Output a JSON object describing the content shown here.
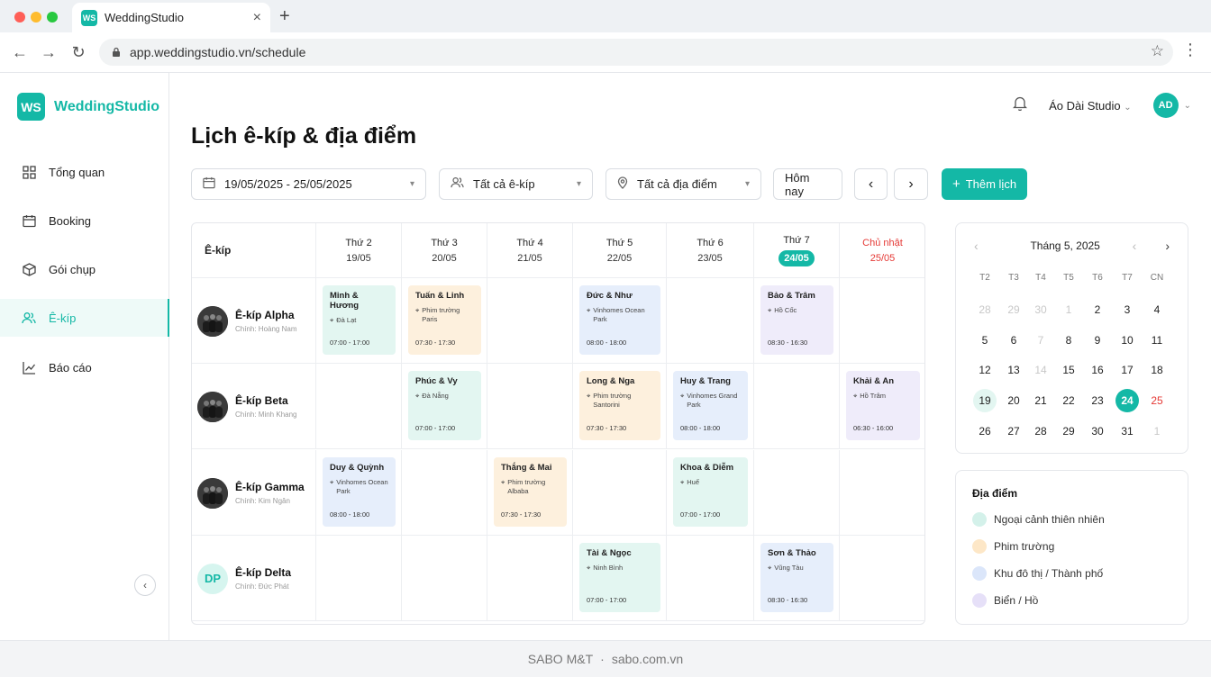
{
  "browser": {
    "tab_title": "WeddingStudio",
    "url": "app.weddingstudio.vn/schedule"
  },
  "app": {
    "logo_mark": "WS",
    "logo_text": "WeddingStudio",
    "studio_name": "Áo Dài Studio",
    "avatar": "AD",
    "page_title": "Lịch ê-kíp & địa điểm"
  },
  "nav": [
    {
      "label": "Tổng quan",
      "icon": "grid-icon"
    },
    {
      "label": "Booking",
      "icon": "calendar-icon"
    },
    {
      "label": "Gói chụp",
      "icon": "box-icon"
    },
    {
      "label": "Ê-kíp",
      "icon": "users-icon",
      "active": true
    },
    {
      "label": "Báo cáo",
      "icon": "chart-icon"
    }
  ],
  "filters": {
    "date_range": "19/05/2025 - 25/05/2025",
    "team": "Tất cả ê-kíp",
    "location": "Tất cả địa điểm",
    "today": "Hôm nay",
    "add": "Thêm lịch"
  },
  "grid": {
    "team_header": "Ê-kíp",
    "days": [
      {
        "name": "Thứ 2",
        "date": "19/05"
      },
      {
        "name": "Thứ 3",
        "date": "20/05"
      },
      {
        "name": "Thứ 4",
        "date": "21/05"
      },
      {
        "name": "Thứ 5",
        "date": "22/05"
      },
      {
        "name": "Thứ 6",
        "date": "23/05"
      },
      {
        "name": "Thứ 7",
        "date": "24/05",
        "today": true
      },
      {
        "name": "Chủ nhật",
        "date": "25/05",
        "sunday": true
      }
    ],
    "teams": [
      {
        "name": "Ê-kíp Alpha",
        "lead": "Chính: Hoàng Nam"
      },
      {
        "name": "Ê-kíp Beta",
        "lead": "Chính: Minh Khang"
      },
      {
        "name": "Ê-kíp Gamma",
        "lead": "Chính: Kim Ngân"
      },
      {
        "name": "Ê-kíp Delta",
        "lead": "Chính: Đức Phát",
        "initials": "DP"
      }
    ],
    "events": [
      {
        "row": 0,
        "day": 0,
        "title": "Minh & Hương",
        "location": "Đà Lạt",
        "time": "07:00 - 17:00",
        "color": "green"
      },
      {
        "row": 0,
        "day": 1,
        "title": "Tuấn & Linh",
        "location": "Phim trường Paris",
        "time": "07:30 - 17:30",
        "color": "orange"
      },
      {
        "row": 0,
        "day": 3,
        "title": "Đức & Như",
        "location": "Vinhomes Ocean Park",
        "time": "08:00 - 18:00",
        "color": "blue"
      },
      {
        "row": 0,
        "day": 5,
        "title": "Bảo & Trâm",
        "location": "Hồ Cốc",
        "time": "08:30 - 16:30",
        "color": "purple"
      },
      {
        "row": 1,
        "day": 1,
        "title": "Phúc & Vy",
        "location": "Đà Nẵng",
        "time": "07:00 - 17:00",
        "color": "green"
      },
      {
        "row": 1,
        "day": 3,
        "title": "Long & Nga",
        "location": "Phim trường Santorini",
        "time": "07:30 - 17:30",
        "color": "orange"
      },
      {
        "row": 1,
        "day": 4,
        "title": "Huy & Trang",
        "location": "Vinhomes Grand Park",
        "time": "08:00 - 18:00",
        "color": "blue"
      },
      {
        "row": 1,
        "day": 6,
        "title": "Khải & An",
        "location": "Hồ Trâm",
        "time": "06:30 - 16:00",
        "color": "purple"
      },
      {
        "row": 2,
        "day": 0,
        "title": "Duy & Quỳnh",
        "location": "Vinhomes Ocean Park",
        "time": "08:00 - 18:00",
        "color": "blue"
      },
      {
        "row": 2,
        "day": 2,
        "title": "Thắng & Mai",
        "location": "Phim trường Albaba",
        "time": "07:30 - 17:30",
        "color": "orange"
      },
      {
        "row": 2,
        "day": 4,
        "title": "Khoa & Diễm",
        "location": "Huế",
        "time": "07:00 - 17:00",
        "color": "green"
      },
      {
        "row": 3,
        "day": 3,
        "title": "Tài & Ngọc",
        "location": "Ninh Bình",
        "time": "07:00 - 17:00",
        "color": "green"
      },
      {
        "row": 3,
        "day": 5,
        "title": "Sơn & Thảo",
        "location": "Vũng Tàu",
        "time": "08:30 - 16:30",
        "color": "blue"
      }
    ]
  },
  "mini_calendar": {
    "title": "Tháng 5, 2025",
    "weekdays": [
      "T2",
      "T3",
      "T4",
      "T5",
      "T6",
      "T7",
      "CN"
    ],
    "weeks": [
      [
        [
          "28",
          "mute"
        ],
        [
          "29",
          "mute"
        ],
        [
          "30",
          "mute"
        ],
        [
          "1",
          "mute"
        ],
        [
          "2",
          ""
        ],
        [
          "3",
          ""
        ],
        [
          "4",
          ""
        ]
      ],
      [
        [
          "5",
          ""
        ],
        [
          "6",
          ""
        ],
        [
          "7",
          "mute"
        ],
        [
          "8",
          ""
        ],
        [
          "9",
          ""
        ],
        [
          "10",
          ""
        ],
        [
          "11",
          ""
        ]
      ],
      [
        [
          "12",
          ""
        ],
        [
          "13",
          ""
        ],
        [
          "14",
          "mute"
        ],
        [
          "15",
          ""
        ],
        [
          "16",
          ""
        ],
        [
          "17",
          ""
        ],
        [
          "18",
          ""
        ]
      ],
      [
        [
          "19",
          "sel"
        ],
        [
          "20",
          ""
        ],
        [
          "21",
          ""
        ],
        [
          "22",
          ""
        ],
        [
          "23",
          ""
        ],
        [
          "24",
          "today"
        ],
        [
          "25",
          "sun"
        ]
      ],
      [
        [
          "26",
          ""
        ],
        [
          "27",
          ""
        ],
        [
          "28",
          ""
        ],
        [
          "29",
          ""
        ],
        [
          "30",
          ""
        ],
        [
          "31",
          ""
        ],
        [
          "1",
          "mute"
        ]
      ]
    ]
  },
  "legend": {
    "title": "Địa điểm",
    "items": [
      {
        "label": "Ngoại cảnh thiên nhiên",
        "color": "#d4f1ea"
      },
      {
        "label": "Phim trường",
        "color": "#fde7c7"
      },
      {
        "label": "Khu đô thị / Thành phố",
        "color": "#dbe6fa"
      },
      {
        "label": "Biển / Hồ",
        "color": "#e6e0f8"
      }
    ]
  },
  "footer": {
    "brand": "SABO M&T",
    "sep": "·",
    "site": "sabo.com.vn"
  }
}
